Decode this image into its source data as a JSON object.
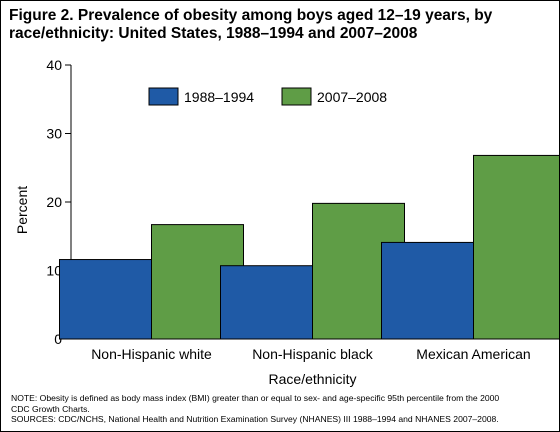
{
  "title": "Figure 2. Prevalence of obesity among boys aged 12–19 years, by race/ethnicity: United States, 1988–1994 and 2007–2008",
  "notes": {
    "line1": "NOTE: Obesity is defined as body mass index (BMI) greater than or equal to sex- and age-specific 95th percentile from the 2000",
    "line2": "CDC Growth Charts.",
    "line3": "SOURCES: CDC/NCHS, National Health and Nutrition Examination Survey (NHANES) III 1988–1994 and NHANES 2007–2008."
  },
  "colors": {
    "series1": "#1f5aa6",
    "series2": "#5f9d46",
    "axis": "#000000"
  },
  "chart_data": {
    "type": "bar",
    "title": "Figure 2. Prevalence of obesity among boys aged 12–19 years, by race/ethnicity: United States, 1988–1994 and 2007–2008",
    "xlabel": "Race/ethnicity",
    "ylabel": "Percent",
    "ylim": [
      0,
      40
    ],
    "yticks": [
      0,
      10,
      20,
      30,
      40
    ],
    "grid": false,
    "legend_position": "top-center",
    "categories": [
      "Non-Hispanic white",
      "Non-Hispanic black",
      "Mexican American"
    ],
    "series": [
      {
        "name": "1988–1994",
        "values": [
          11.6,
          10.7,
          14.1
        ]
      },
      {
        "name": "2007–2008",
        "values": [
          16.7,
          19.8,
          26.8
        ]
      }
    ]
  }
}
